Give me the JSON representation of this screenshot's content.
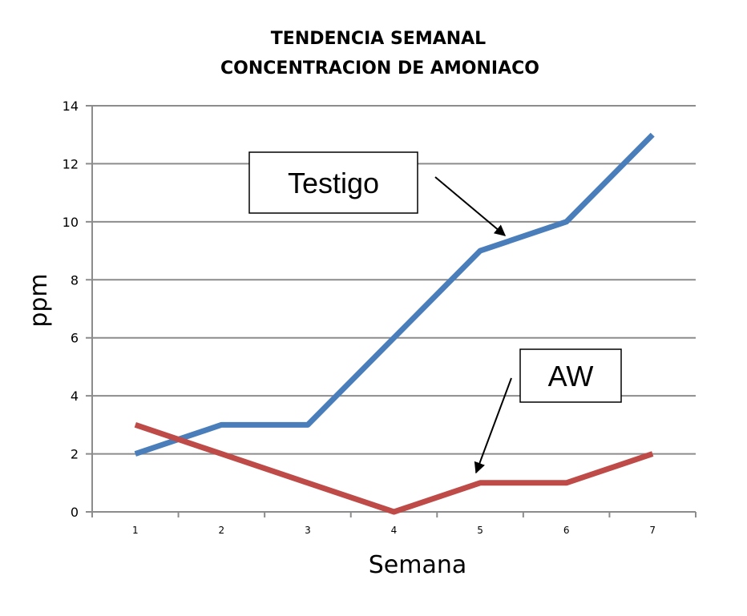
{
  "chart_data": {
    "type": "line",
    "title_line1": "TENDENCIA SEMANAL",
    "title_line2": "CONCENTRACION DE AMONIACO",
    "xlabel": "Semana",
    "ylabel": "ppm",
    "x": [
      1,
      2,
      3,
      4,
      5,
      6,
      7
    ],
    "x_tick_labels": [
      "1",
      "2",
      "3",
      "4",
      "5",
      "6",
      "7"
    ],
    "ylim": [
      0,
      14
    ],
    "y_ticks": [
      0,
      2,
      4,
      6,
      8,
      10,
      12,
      14
    ],
    "y_tick_labels": [
      "0",
      "2",
      "4",
      "6",
      "8",
      "10",
      "12",
      "14"
    ],
    "grid": "horizontal",
    "series": [
      {
        "name": "Testigo",
        "values": [
          2,
          3,
          3,
          6,
          9,
          10,
          13
        ],
        "color": "#4a7ebb"
      },
      {
        "name": "AW",
        "values": [
          3,
          2,
          1,
          0,
          1,
          1,
          2
        ],
        "color": "#be4b48"
      }
    ],
    "annotations": [
      {
        "text": "Testigo",
        "points_to_series": "Testigo"
      },
      {
        "text": "AW",
        "points_to_series": "AW"
      }
    ]
  }
}
